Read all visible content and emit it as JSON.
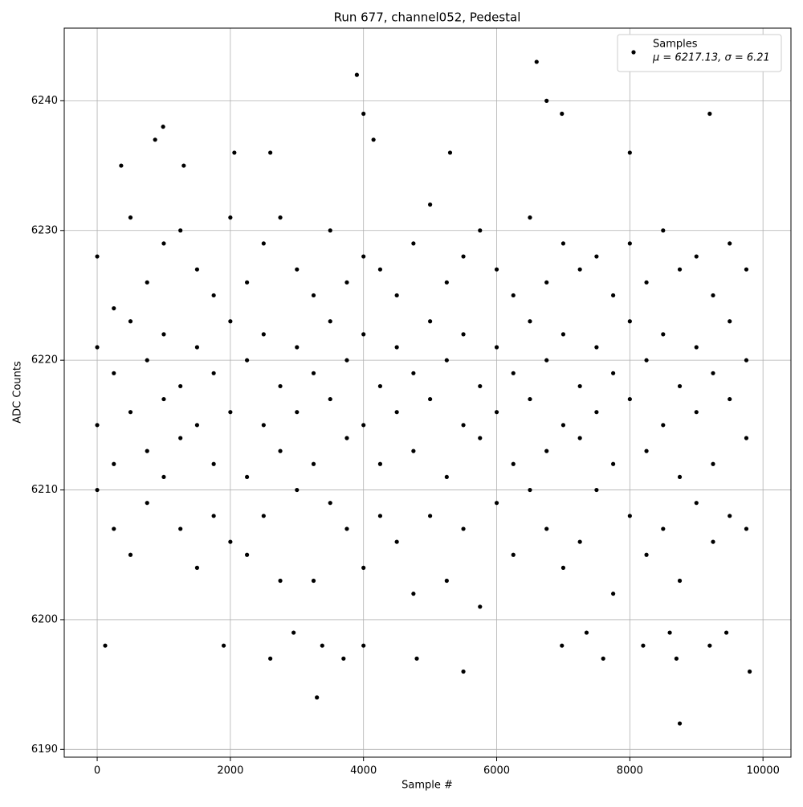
{
  "chart_data": {
    "type": "scatter",
    "title": "Run 677, channel052, Pedestal",
    "x_label": "Sample #",
    "y_label": "ADC Counts",
    "xlim": [
      -495,
      10420
    ],
    "ylim": [
      6189.4,
      6245.6
    ],
    "xticks": [
      0,
      2000,
      4000,
      6000,
      8000,
      10000
    ],
    "yticks": [
      6190,
      6200,
      6210,
      6220,
      6230,
      6240
    ],
    "grid": true,
    "legend": "upper right",
    "series": [
      {
        "name": "Samples",
        "stats_label": "μ = 6217.13, σ = 6.21",
        "color": "#000000",
        "x": [
          0,
          0,
          0,
          0,
          250,
          250,
          250,
          250,
          500,
          500,
          500,
          500,
          750,
          750,
          750,
          750,
          1000,
          1000,
          1000,
          1000,
          1250,
          1250,
          1250,
          1250,
          1500,
          1500,
          1500,
          1500,
          1750,
          1750,
          1750,
          1750,
          2000,
          2000,
          2000,
          2000,
          2250,
          2250,
          2250,
          2250,
          2500,
          2500,
          2500,
          2500,
          2750,
          2750,
          2750,
          2750,
          3000,
          3000,
          3000,
          3000,
          3250,
          3250,
          3250,
          3250,
          3500,
          3500,
          3500,
          3500,
          3750,
          3750,
          3750,
          3750,
          4000,
          4000,
          4000,
          4000,
          4250,
          4250,
          4250,
          4250,
          4500,
          4500,
          4500,
          4500,
          4750,
          4750,
          4750,
          4750,
          5000,
          5000,
          5000,
          5000,
          5250,
          5250,
          5250,
          5250,
          5500,
          5500,
          5500,
          5500,
          5750,
          5750,
          5750,
          5750,
          6000,
          6000,
          6000,
          6000,
          6250,
          6250,
          6250,
          6250,
          6500,
          6500,
          6500,
          6500,
          6750,
          6750,
          6750,
          6750,
          7000,
          7000,
          7000,
          7000,
          7250,
          7250,
          7250,
          7250,
          7500,
          7500,
          7500,
          7500,
          7750,
          7750,
          7750,
          7750,
          8000,
          8000,
          8000,
          8000,
          8250,
          8250,
          8250,
          8250,
          8500,
          8500,
          8500,
          8500,
          8750,
          8750,
          8750,
          8750,
          9000,
          9000,
          9000,
          9000,
          9250,
          9250,
          9250,
          9250,
          9500,
          9500,
          9500,
          9500,
          9750,
          9750,
          9750,
          9750,
          3300,
          8750,
          6600,
          3900,
          6750,
          6980,
          9200,
          4000,
          990,
          4150,
          870,
          5500,
          9800,
          120,
          3380,
          4000,
          6980,
          8200,
          9200,
          2600,
          3700,
          4800,
          7600,
          8700,
          1900,
          2060,
          2600,
          5300,
          8000,
          2950,
          7350,
          8600,
          9450,
          360,
          1300
        ],
        "values": [
          6228,
          6221,
          6215,
          6210,
          6224,
          6219,
          6212,
          6207,
          6231,
          6223,
          6216,
          6205,
          6226,
          6220,
          6213,
          6209,
          6229,
          6222,
          6217,
          6211,
          6230,
          6218,
          6214,
          6207,
          6227,
          6221,
          6215,
          6204,
          6225,
          6219,
          6212,
          6208,
          6231,
          6223,
          6216,
          6206,
          6226,
          6220,
          6211,
          6205,
          6229,
          6222,
          6215,
          6208,
          6231,
          6218,
          6213,
          6203,
          6227,
          6221,
          6216,
          6210,
          6225,
          6219,
          6212,
          6203,
          6230,
          6223,
          6217,
          6209,
          6226,
          6220,
          6214,
          6207,
          6228,
          6222,
          6215,
          6204,
          6227,
          6218,
          6212,
          6208,
          6225,
          6221,
          6216,
          6206,
          6229,
          6219,
          6213,
          6202,
          6232,
          6223,
          6217,
          6208,
          6226,
          6220,
          6211,
          6203,
          6228,
          6222,
          6215,
          6207,
          6230,
          6218,
          6214,
          6201,
          6227,
          6221,
          6216,
          6209,
          6225,
          6219,
          6212,
          6205,
          6231,
          6223,
          6217,
          6210,
          6226,
          6220,
          6213,
          6207,
          6229,
          6222,
          6215,
          6204,
          6227,
          6218,
          6214,
          6206,
          6228,
          6221,
          6216,
          6210,
          6225,
          6219,
          6212,
          6202,
          6229,
          6223,
          6217,
          6208,
          6226,
          6220,
          6213,
          6205,
          6230,
          6222,
          6215,
          6207,
          6227,
          6218,
          6211,
          6203,
          6228,
          6221,
          6216,
          6209,
          6225,
          6219,
          6212,
          6206,
          6229,
          6223,
          6217,
          6208,
          6227,
          6220,
          6214,
          6207,
          6194,
          6192,
          6243,
          6242,
          6240,
          6239,
          6239,
          6239,
          6238,
          6237,
          6237,
          6196,
          6196,
          6198,
          6198,
          6198,
          6198,
          6198,
          6198,
          6197,
          6197,
          6197,
          6197,
          6197,
          6198,
          6236,
          6236,
          6236,
          6236,
          6199,
          6199,
          6199,
          6199,
          6235,
          6235
        ]
      }
    ]
  }
}
